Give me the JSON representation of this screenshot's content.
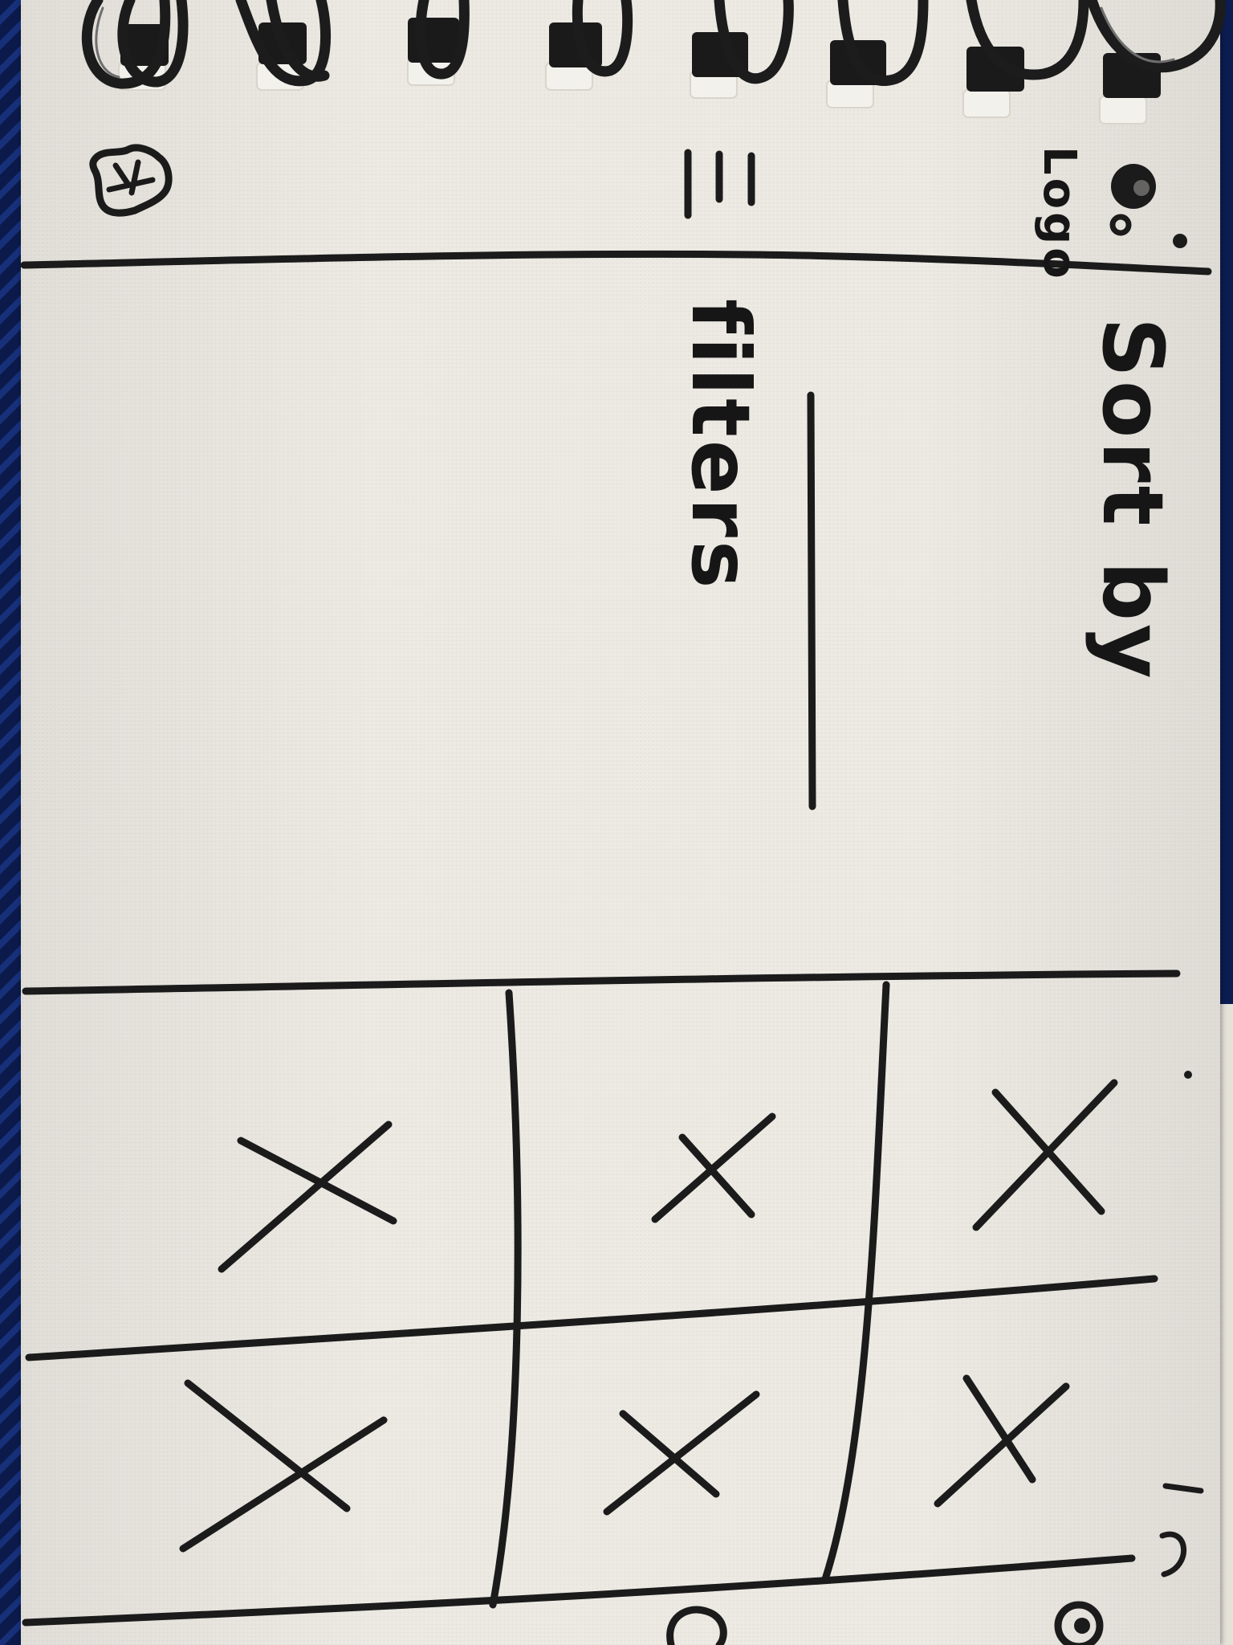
{
  "header": {
    "logo_label": "Logo",
    "menu_icon": "hamburger-menu-icon",
    "cart_icon": "shopping-bag-icon"
  },
  "toolbar": {
    "sort_label": "Sort by",
    "filters_label": "filters"
  },
  "grid": {
    "rows": 2,
    "columns": 3,
    "cells": [
      {
        "icon": "image-placeholder-icon"
      },
      {
        "icon": "image-placeholder-icon"
      },
      {
        "icon": "image-placeholder-icon"
      },
      {
        "icon": "image-placeholder-icon"
      },
      {
        "icon": "image-placeholder-icon"
      },
      {
        "icon": "image-placeholder-icon"
      }
    ]
  },
  "colors": {
    "paper": "#edeae4",
    "ink": "#1b1b1b",
    "backdrop": "#0d1d52"
  }
}
